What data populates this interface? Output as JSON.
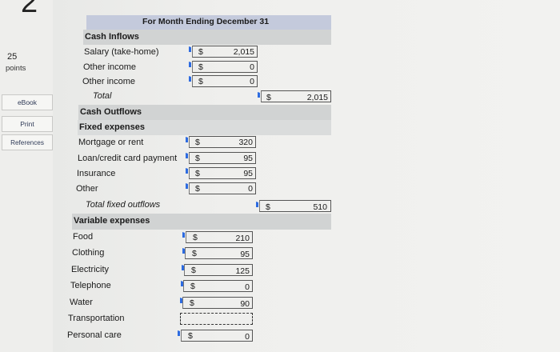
{
  "question": {
    "number": "2",
    "points_value": "25",
    "points_label": "points"
  },
  "side_buttons": {
    "ebook": "eBook",
    "print": "Print",
    "references": "References"
  },
  "header": {
    "title": "For Month Ending December 31"
  },
  "cash_inflows": {
    "heading": "Cash Inflows",
    "rows": [
      {
        "label": "Salary (take-home)",
        "currency": "$",
        "value": "2,015"
      },
      {
        "label": "Other income",
        "currency": "$",
        "value": "0"
      },
      {
        "label": "Other income",
        "currency": "$",
        "value": "0"
      }
    ],
    "total_label": "Total",
    "total_currency": "$",
    "total_value": "2,015"
  },
  "cash_outflows": {
    "heading": "Cash Outflows",
    "fixed": {
      "heading": "Fixed expenses",
      "rows": [
        {
          "label": "Mortgage or rent",
          "currency": "$",
          "value": "320"
        },
        {
          "label": "Loan/credit card payment",
          "currency": "$",
          "value": "95"
        },
        {
          "label": "Insurance",
          "currency": "$",
          "value": "95"
        },
        {
          "label": "Other",
          "currency": "$",
          "value": "0"
        }
      ],
      "total_label": "Total fixed outflows",
      "total_currency": "$",
      "total_value": "510"
    },
    "variable": {
      "heading": "Variable expenses",
      "rows": [
        {
          "label": "Food",
          "currency": "$",
          "value": "210"
        },
        {
          "label": "Clothing",
          "currency": "$",
          "value": "95"
        },
        {
          "label": "Electricity",
          "currency": "$",
          "value": "125"
        },
        {
          "label": "Telephone",
          "currency": "$",
          "value": "0"
        },
        {
          "label": "Water",
          "currency": "$",
          "value": "90"
        },
        {
          "label": "Transportation",
          "currency": "",
          "value": ""
        },
        {
          "label": "Personal care",
          "currency": "$",
          "value": "0"
        }
      ]
    }
  },
  "colors": {
    "header_band": "#c4cadc",
    "section_band": "#d1d3d3",
    "flag": "#2d6be0"
  }
}
